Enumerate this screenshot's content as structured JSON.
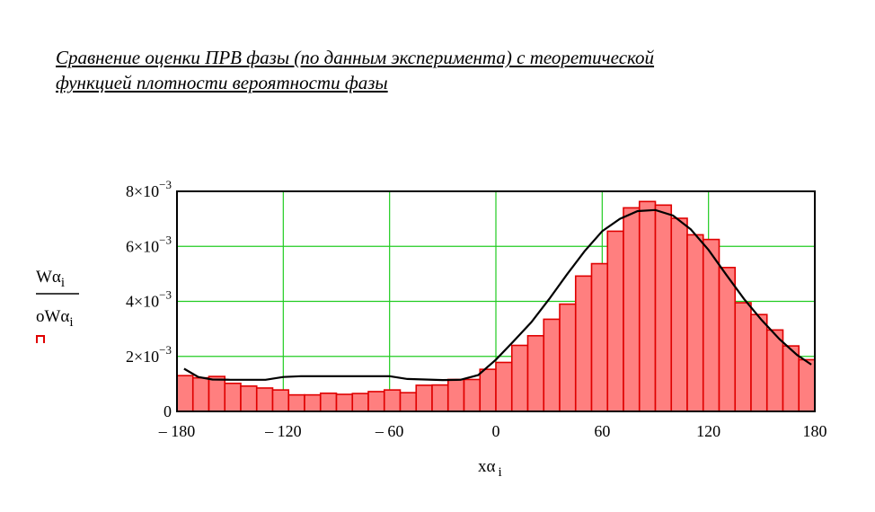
{
  "title_lines": [
    "Сравнение оценки ПРВ фазы (по данным эксперимента) с теоретической",
    "функцией плотности вероятности фазы"
  ],
  "colors": {
    "bar_fill": "#ff7f7f",
    "bar_stroke": "#e00000",
    "curve": "#000000",
    "grid": "#22cc22",
    "frame": "#000000"
  },
  "chart_data": {
    "type": "bar",
    "xlabel": "xα",
    "xlabel_sub": "i",
    "ylabel_top": "Wα",
    "ylabel_top_sub": "i",
    "ylabel_bottom": "oWα",
    "ylabel_bottom_sub": "i",
    "legend_marker": "bar-trace",
    "xlim": [
      -180,
      180
    ],
    "ylim": [
      0,
      0.008
    ],
    "grid": true,
    "x_ticks": [
      {
        "value": -180,
        "label": "– 180"
      },
      {
        "value": -120,
        "label": "– 120"
      },
      {
        "value": -60,
        "label": "– 60"
      },
      {
        "value": 0,
        "label": "0"
      },
      {
        "value": 60,
        "label": "60"
      },
      {
        "value": 120,
        "label": "120"
      },
      {
        "value": 180,
        "label": "180"
      }
    ],
    "y_ticks": [
      {
        "value": 0,
        "mantissa": "0",
        "exponent": ""
      },
      {
        "value": 0.002,
        "mantissa": "2×10",
        "exponent": "−3"
      },
      {
        "value": 0.004,
        "mantissa": "4×10",
        "exponent": "−3"
      },
      {
        "value": 0.006,
        "mantissa": "6×10",
        "exponent": "−3"
      },
      {
        "value": 0.008,
        "mantissa": "8×10",
        "exponent": "−3"
      }
    ],
    "bin_width": 9,
    "bins_x": [
      -180,
      -171,
      -162,
      -153,
      -144,
      -135,
      -126,
      -117,
      -108,
      -99,
      -90,
      -81,
      -72,
      -63,
      -54,
      -45,
      -36,
      -27,
      -18,
      -9,
      0,
      9,
      18,
      27,
      36,
      45,
      54,
      63,
      72,
      81,
      90,
      99,
      108,
      117,
      126,
      135,
      144,
      153,
      162,
      171
    ],
    "bins_y": [
      0.0013,
      0.00122,
      0.00127,
      0.00102,
      0.00092,
      0.00085,
      0.00078,
      0.0006,
      0.0006,
      0.00066,
      0.00062,
      0.00065,
      0.00072,
      0.00078,
      0.00068,
      0.00095,
      0.00096,
      0.00116,
      0.00116,
      0.00153,
      0.00178,
      0.0024,
      0.00275,
      0.00335,
      0.0039,
      0.00492,
      0.00537,
      0.00655,
      0.0074,
      0.00763,
      0.0075,
      0.00702,
      0.00642,
      0.00625,
      0.00523,
      0.00395,
      0.00352,
      0.00296,
      0.00238,
      0.00188
    ],
    "curve_x": [
      -176,
      -168,
      -160,
      -150,
      -140,
      -130,
      -120,
      -110,
      -100,
      -90,
      -80,
      -70,
      -60,
      -50,
      -40,
      -30,
      -20,
      -10,
      0,
      10,
      20,
      30,
      40,
      50,
      60,
      70,
      80,
      90,
      100,
      110,
      120,
      130,
      140,
      150,
      160,
      170,
      178
    ],
    "curve_y": [
      0.00155,
      0.00125,
      0.00116,
      0.00115,
      0.00115,
      0.00115,
      0.00125,
      0.00128,
      0.00128,
      0.00128,
      0.00128,
      0.00128,
      0.00128,
      0.00118,
      0.00116,
      0.00114,
      0.00115,
      0.00132,
      0.00188,
      0.00255,
      0.00324,
      0.00408,
      0.00497,
      0.00582,
      0.00655,
      0.007,
      0.00728,
      0.00732,
      0.00712,
      0.00662,
      0.00587,
      0.00497,
      0.00409,
      0.00332,
      0.00263,
      0.00205,
      0.0017
    ]
  }
}
